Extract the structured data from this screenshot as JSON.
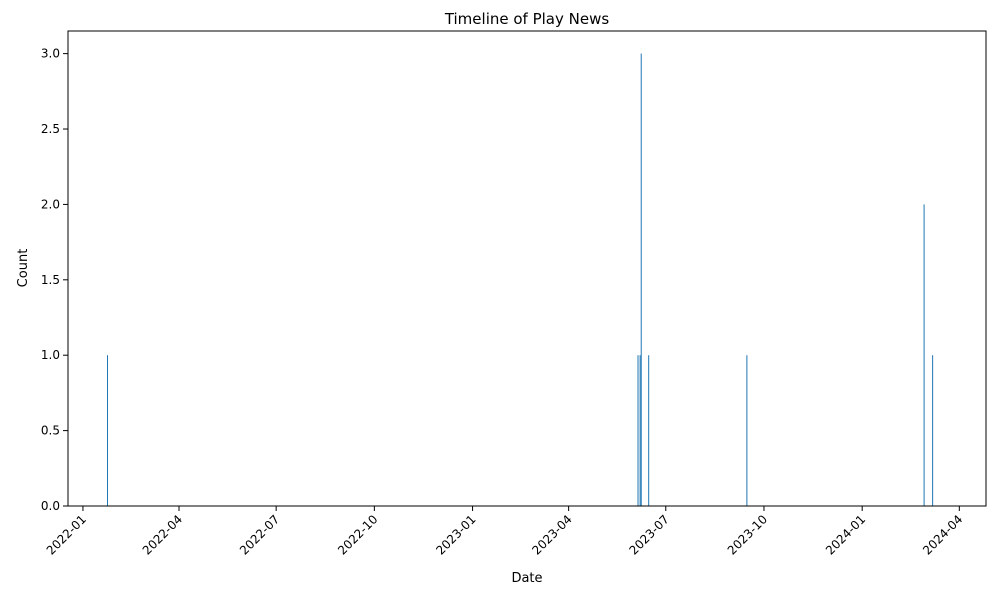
{
  "chart_data": {
    "type": "bar",
    "title": "Timeline of Play News",
    "xlabel": "Date",
    "ylabel": "Count",
    "bar_color": "#1f77b4",
    "x_ticks": [
      "2022-01",
      "2022-04",
      "2022-07",
      "2022-10",
      "2023-01",
      "2023-04",
      "2023-07",
      "2023-10",
      "2024-01",
      "2024-04"
    ],
    "y_ticks": [
      "0.0",
      "0.5",
      "1.0",
      "1.5",
      "2.0",
      "2.5",
      "3.0"
    ],
    "ylim": [
      0,
      3.15
    ],
    "xlim": [
      "2021-12-18",
      "2024-04-26"
    ],
    "grid": false,
    "bars": [
      {
        "date": "2022-01-24",
        "value": 1
      },
      {
        "date": "2023-06-05",
        "value": 1
      },
      {
        "date": "2023-06-07",
        "value": 1
      },
      {
        "date": "2023-06-08",
        "value": 3
      },
      {
        "date": "2023-06-15",
        "value": 1
      },
      {
        "date": "2023-09-15",
        "value": 1
      },
      {
        "date": "2024-02-28",
        "value": 2
      },
      {
        "date": "2024-03-07",
        "value": 1
      }
    ]
  }
}
